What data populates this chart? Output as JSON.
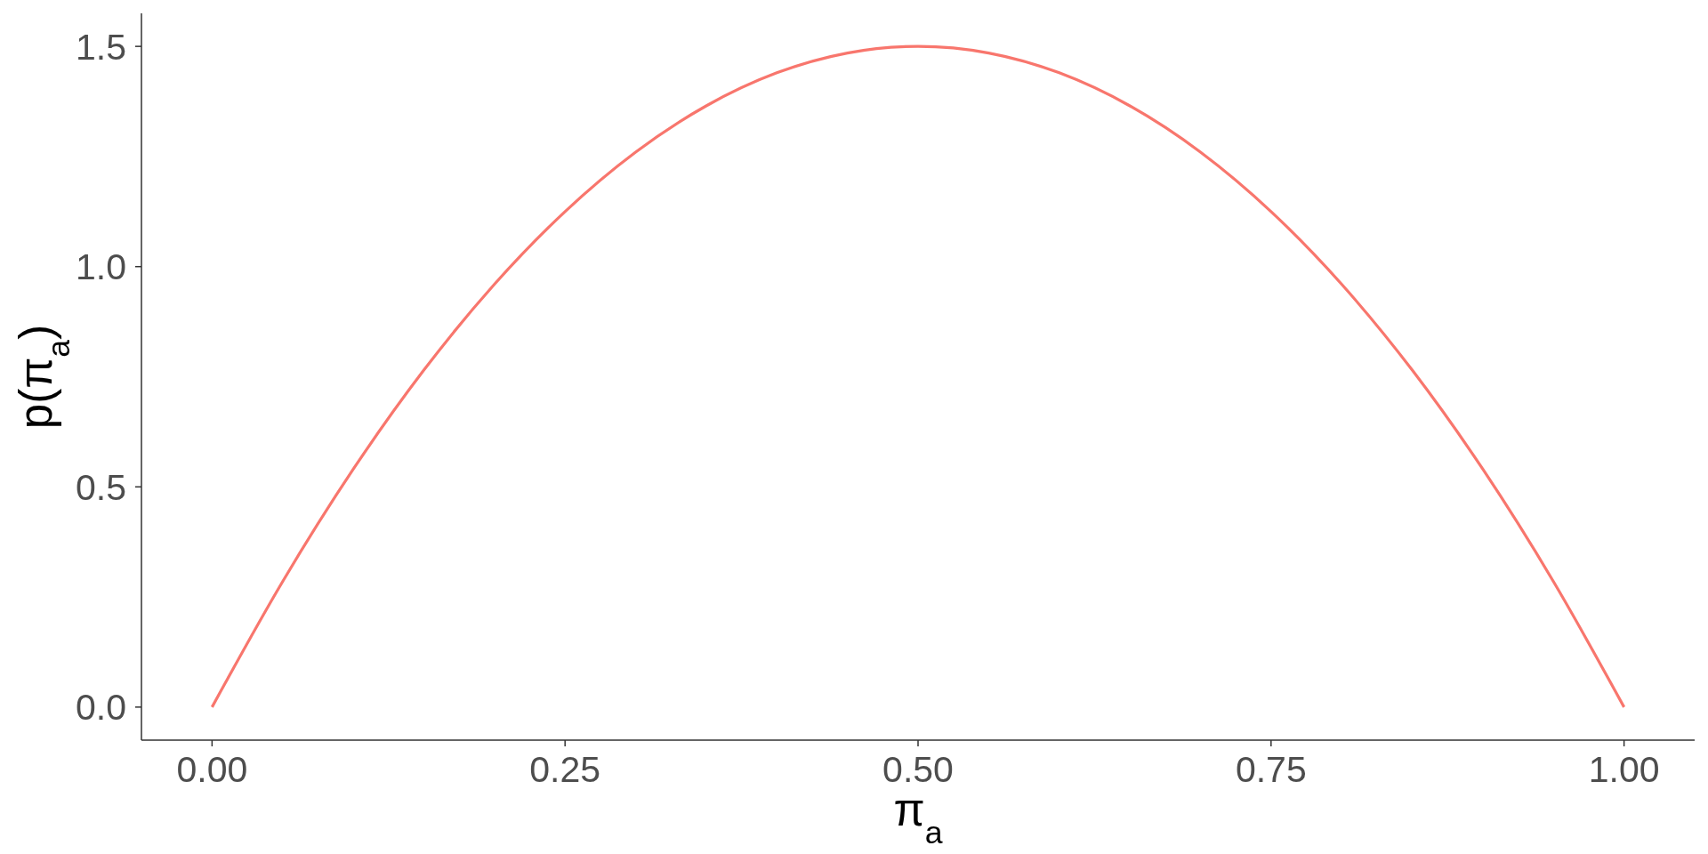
{
  "chart_data": {
    "type": "line",
    "xlabel": "π$_{a}$",
    "ylabel": "p(π$_{a}$)",
    "x": [
      0,
      0.05,
      0.1,
      0.15,
      0.2,
      0.25,
      0.3,
      0.35,
      0.4,
      0.45,
      0.5,
      0.55,
      0.6,
      0.65,
      0.7,
      0.75,
      0.8,
      0.85,
      0.9,
      0.95,
      1
    ],
    "series": [
      {
        "color": "#f8766d",
        "values": [
          0,
          0.285,
          0.54,
          0.765,
          0.96,
          1.125,
          1.26,
          1.365,
          1.44,
          1.485,
          1.5,
          1.485,
          1.44,
          1.365,
          1.26,
          1.125,
          0.96,
          0.765,
          0.54,
          0.285,
          0
        ]
      }
    ],
    "xlim": [
      -0.05,
      1.05
    ],
    "xticks": [
      {
        "value": 0,
        "label": "0.00"
      },
      0.25,
      {
        "value": 0.5,
        "label": "0.50"
      },
      0.75,
      {
        "value": 1,
        "label": "1.00"
      }
    ],
    "ylim": [
      -0.075,
      1.575
    ],
    "yticks": [
      {
        "value": 0,
        "label": "0.0"
      },
      0.5,
      {
        "value": 1,
        "label": "1.0"
      },
      1.5
    ],
    "marker": "none",
    "line_style": "solid"
  }
}
